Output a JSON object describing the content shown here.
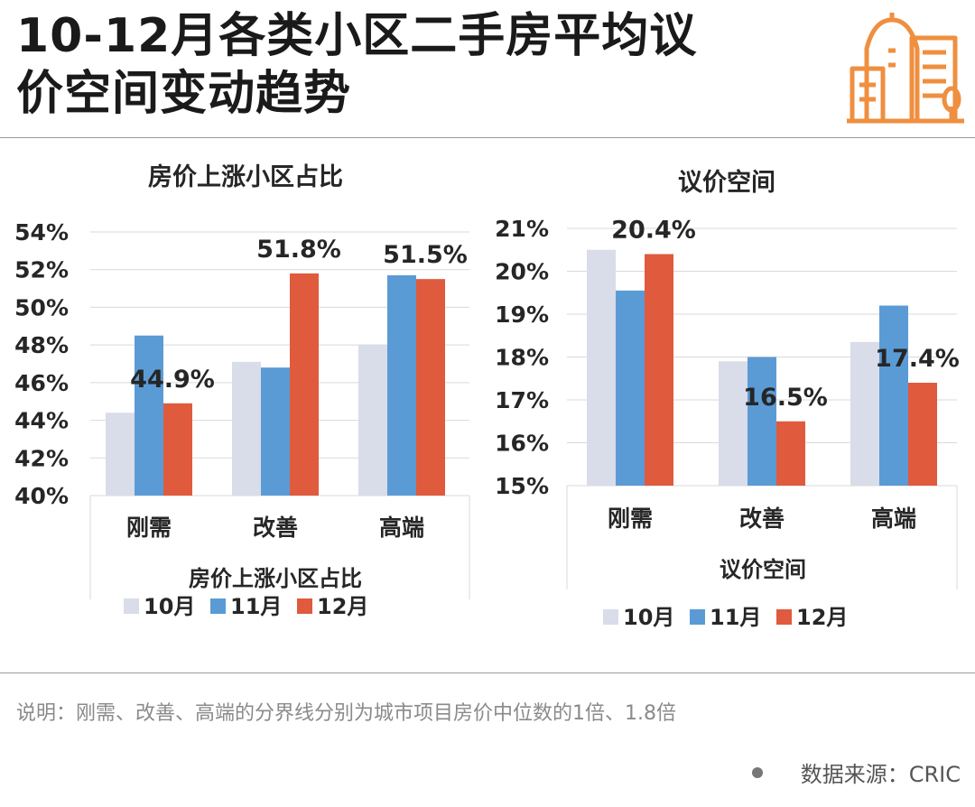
{
  "title": {
    "line1": "10-12月各类小区二手房平均议",
    "line2": "价空间变动趋势"
  },
  "note": "说明：刚需、改善、高端的分界线分别为城市项目房价中位数的1倍、1.8倍",
  "source": "数据来源：CRIC",
  "colors": {
    "oct": "#d9dce9",
    "nov": "#5b9bd5",
    "dec": "#e05a3d",
    "logo": "#ef8f3f",
    "grid": "#d9d9d9",
    "text": "#262626"
  },
  "chart_data": [
    {
      "type": "bar",
      "title": "房价上涨小区占比",
      "xlabel": "房价上涨小区占比",
      "categories": [
        "刚需",
        "改善",
        "高端"
      ],
      "series": [
        {
          "name": "10月",
          "values": [
            44.4,
            47.1,
            48.0
          ]
        },
        {
          "name": "11月",
          "values": [
            48.5,
            46.8,
            51.7
          ]
        },
        {
          "name": "12月",
          "values": [
            44.9,
            51.8,
            51.5
          ]
        }
      ],
      "data_labels": [
        "44.9%",
        "51.8%",
        "51.5%"
      ],
      "ylim": [
        40,
        54
      ],
      "yticks": [
        40,
        42,
        44,
        46,
        48,
        50,
        52,
        54
      ],
      "ytick_labels": [
        "40%",
        "42%",
        "44%",
        "46%",
        "48%",
        "50%",
        "52%",
        "54%"
      ],
      "legend": [
        "10月",
        "11月",
        "12月"
      ],
      "legend_position": "bottom"
    },
    {
      "type": "bar",
      "title": "议价空间",
      "xlabel": "议价空间",
      "categories": [
        "刚需",
        "改善",
        "高端"
      ],
      "series": [
        {
          "name": "10月",
          "values": [
            20.5,
            17.9,
            18.35
          ]
        },
        {
          "name": "11月",
          "values": [
            19.55,
            18.0,
            19.2
          ]
        },
        {
          "name": "12月",
          "values": [
            20.4,
            16.5,
            17.4
          ]
        }
      ],
      "data_labels": [
        "20.4%",
        "16.5%",
        "17.4%"
      ],
      "ylim": [
        15,
        21
      ],
      "yticks": [
        15,
        16,
        17,
        18,
        19,
        20,
        21
      ],
      "ytick_labels": [
        "15%",
        "16%",
        "17%",
        "18%",
        "19%",
        "20%",
        "21%"
      ],
      "legend": [
        "10月",
        "11月",
        "12月"
      ],
      "legend_position": "bottom"
    }
  ]
}
